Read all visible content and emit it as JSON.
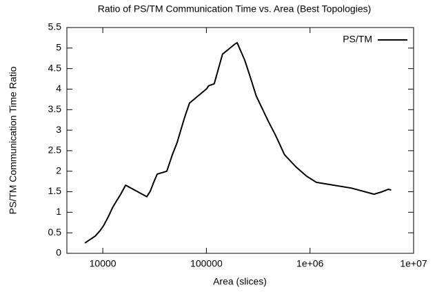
{
  "chart_data": {
    "type": "line",
    "title": "Ratio of PS/TM Communication Time vs. Area (Best Topologies)",
    "x_label": "Area (slices)",
    "y_label": "PS/TM Communication Time Ratio",
    "x_log": true,
    "legend": "top-right",
    "x": [
      6710,
      8450,
      9400,
      10150,
      11300,
      12400,
      13600,
      14900,
      16600,
      26600,
      28700,
      31000,
      33500,
      41500,
      46900,
      52200,
      57200,
      61800,
      68700,
      100700,
      105000,
      119000,
      143000,
      189000,
      198000,
      234000,
      260000,
      303000,
      399000,
      466000,
      568000,
      736000,
      926000,
      1150000,
      2500000,
      4150000,
      4830000,
      5720000,
      6080000
    ],
    "series": [
      {
        "name": "PS/TM",
        "color": "#000000",
        "values": [
          0.25,
          0.42,
          0.55,
          0.67,
          0.89,
          1.11,
          1.28,
          1.44,
          1.66,
          1.38,
          1.51,
          1.73,
          1.93,
          2.0,
          2.4,
          2.7,
          3.04,
          3.32,
          3.66,
          4.01,
          4.08,
          4.13,
          4.85,
          5.1,
          5.13,
          4.71,
          4.36,
          3.83,
          3.2,
          2.87,
          2.4,
          2.1,
          1.88,
          1.73,
          1.59,
          1.44,
          1.49,
          1.56,
          1.54
        ]
      }
    ],
    "xlim": [
      4500,
      10000000
    ],
    "xticks": [
      10000,
      100000,
      {
        "value": 1000000,
        "label": "1e+06"
      },
      {
        "value": 10000000,
        "label": "1e+07"
      }
    ],
    "ylim": [
      0,
      5.5
    ],
    "yticks": [
      0,
      0.5,
      1,
      1.5,
      2,
      2.5,
      3,
      3.5,
      4,
      4.5,
      5,
      5.5
    ]
  }
}
